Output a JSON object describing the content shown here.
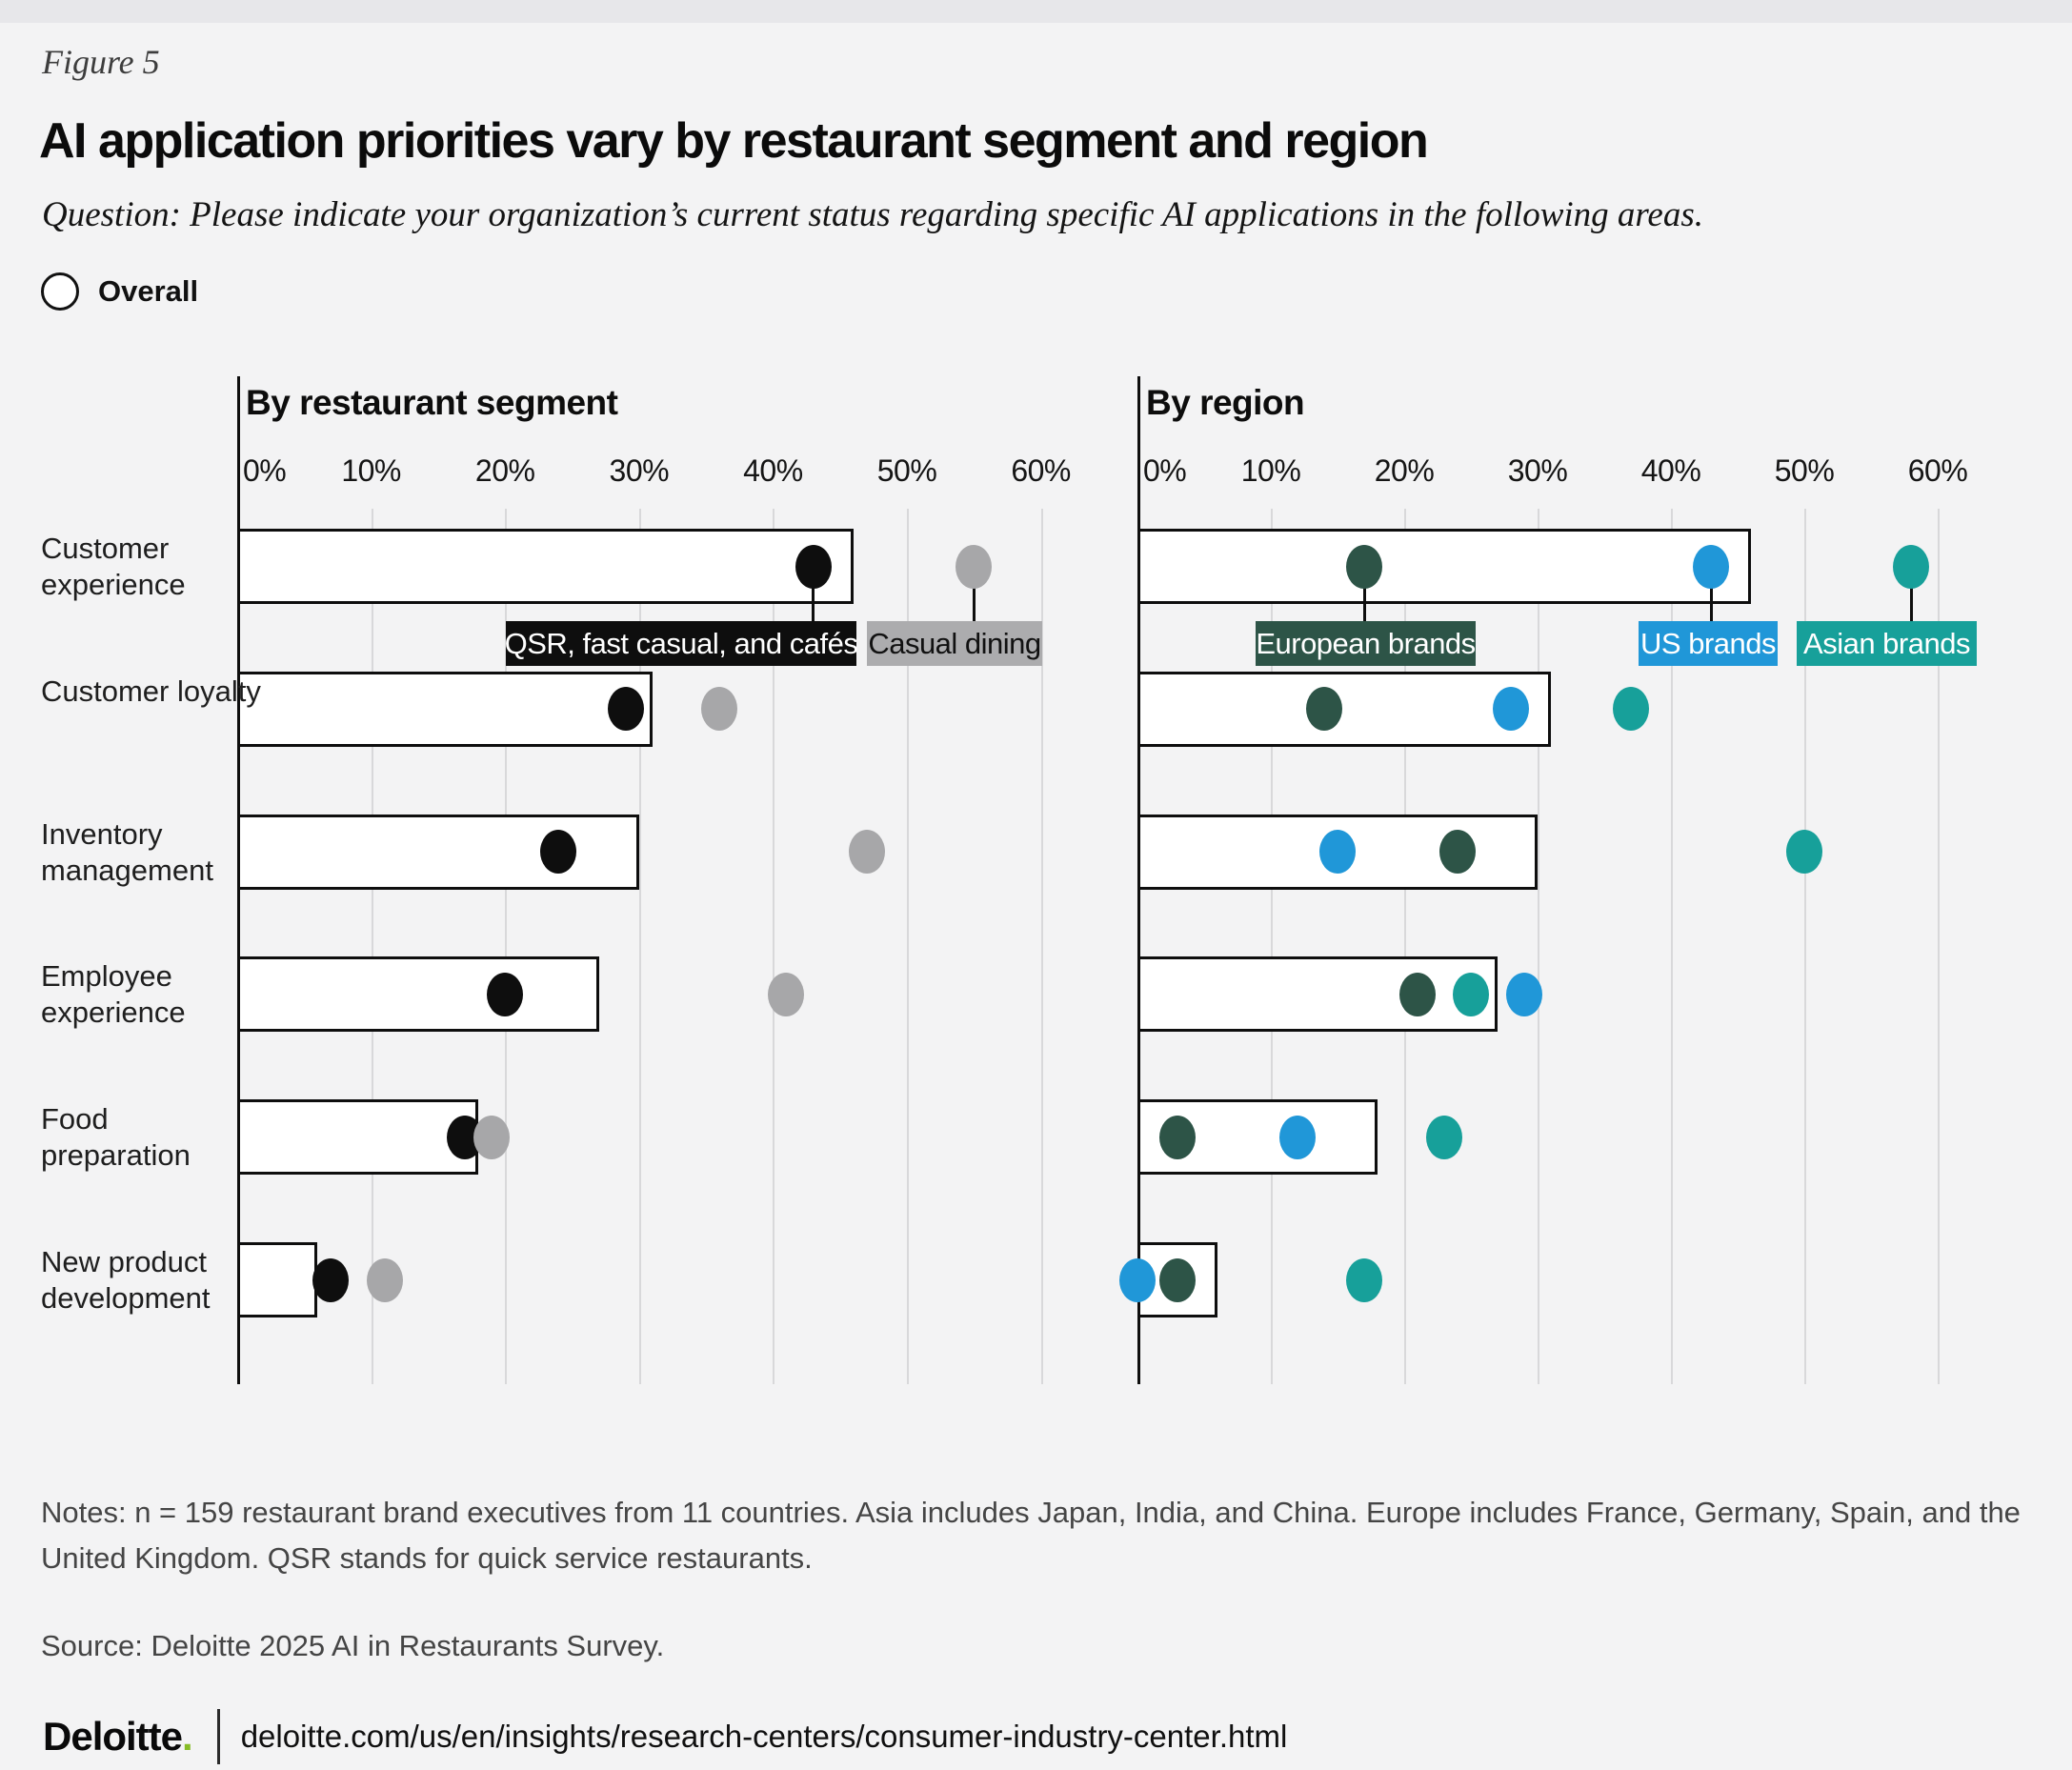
{
  "figure_label": "Figure 5",
  "title": "AI application priorities vary by restaurant segment and region",
  "question": "Question: Please indicate your organization’s current status regarding specific AI applications in the following areas.",
  "legend": {
    "overall_label": "Overall"
  },
  "colors": {
    "background": "#f3f3f4",
    "top_strip": "#e7e7ea",
    "overall_bar_fill": "#ffffff",
    "bar_border": "#0e0e0e",
    "gridline": "#d8d8da",
    "qsr_black": "#0e0e0e",
    "casual_gray": "#a7a7a9",
    "casual_box_gray": "#acacae",
    "european_green": "#2d5447",
    "us_blue": "#2097d8",
    "asian_teal": "#17a09a",
    "deloitte_green": "#86bc25"
  },
  "chart_data": [
    {
      "type": "bar",
      "title": "By restaurant segment",
      "categories": [
        "Customer experience",
        "Customer loyalty",
        "Inventory management",
        "Employee experience",
        "Food preparation",
        "New product development"
      ],
      "overall_bar_values": [
        46,
        31,
        30,
        27,
        18,
        6
      ],
      "series": [
        {
          "name": "QSR, fast casual, and cafés",
          "color": "#0e0e0e",
          "box_color": "#0e0e0e",
          "text_color": "#ffffff",
          "values": [
            43,
            29,
            24,
            20,
            17,
            7
          ]
        },
        {
          "name": "Casual dining",
          "color": "#a7a7a9",
          "box_color": "#acacae",
          "text_color": "#111111",
          "values": [
            55,
            36,
            47,
            41,
            19,
            11
          ]
        }
      ],
      "xlabel": "",
      "ylabel": "",
      "xlim": [
        0,
        60
      ],
      "tick_step": 10,
      "tick_suffix": "%",
      "grid": true,
      "legend_position": "inline-first-row"
    },
    {
      "type": "bar",
      "title": "By region",
      "categories": [
        "Customer experience",
        "Customer loyalty",
        "Inventory management",
        "Employee experience",
        "Food preparation",
        "New product development"
      ],
      "overall_bar_values": [
        46,
        31,
        30,
        27,
        18,
        6
      ],
      "series": [
        {
          "name": "European brands",
          "color": "#2d5447",
          "box_color": "#2d5447",
          "text_color": "#ffffff",
          "values": [
            17,
            14,
            24,
            21,
            3,
            3
          ]
        },
        {
          "name": "US brands",
          "color": "#2097d8",
          "box_color": "#2097d8",
          "text_color": "#ffffff",
          "values": [
            43,
            28,
            15,
            29,
            12,
            0
          ]
        },
        {
          "name": "Asian brands",
          "color": "#17a09a",
          "box_color": "#17a09a",
          "text_color": "#ffffff",
          "values": [
            58,
            37,
            50,
            25,
            23,
            17
          ]
        }
      ],
      "xlabel": "",
      "ylabel": "",
      "xlim": [
        0,
        60
      ],
      "tick_step": 10,
      "tick_suffix": "%",
      "grid": true,
      "legend_position": "inline-first-row"
    }
  ],
  "notes": "Notes: n = 159 restaurant brand executives from 11 countries.  Asia includes Japan, India, and China. Europe includes France, Germany, Spain, and the United Kingdom. QSR stands for quick service restaurants.",
  "source": "Source: Deloitte 2025 AI in Restaurants Survey.",
  "footer": {
    "logo_text": "Deloitte",
    "logo_dot": ".",
    "url": "deloitte.com/us/en/insights/research-centers/consumer-industry-center.html"
  }
}
